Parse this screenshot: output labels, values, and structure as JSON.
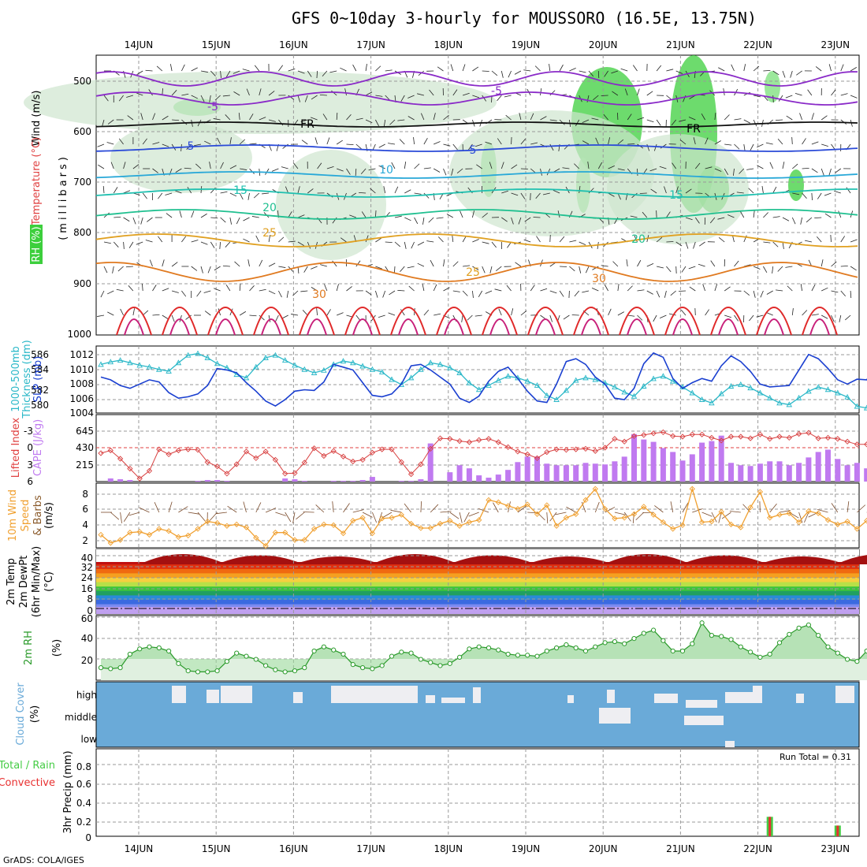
{
  "title": "GFS 0~10day 3-hourly for MOUSSORO (16.5E, 13.75N)",
  "footer": "GrADS: COLA/IGES",
  "days": [
    "14JUN",
    "15JUN",
    "16JUN",
    "17JUN",
    "18JUN",
    "19JUN",
    "20JUN",
    "21JUN",
    "22JUN",
    "23JUN"
  ],
  "colors": {
    "rh_fill": "#3ccf3c",
    "slp": "#1a3fd0",
    "thickness": "#2bb8c8",
    "cape": "#c07af0",
    "lifted": "#d84040",
    "wind10": "#f0a030",
    "rh2m": "#2a9a2a",
    "cloud": "#6aaad8",
    "precip_total": "#44cc44",
    "precip_conv": "#e83030"
  },
  "panels": {
    "upper": {
      "ylabel_wind": "Wind (m/s)",
      "ylabel_temp": "Temperature (°C)",
      "ylabel_rh": "RH (%)",
      "ylabel_mb": "(millibars)",
      "levels": [
        "500",
        "600",
        "700",
        "800",
        "900",
        "1000"
      ],
      "contour_labels": [
        "-5",
        "-5",
        "FR",
        "FR",
        "5",
        "5",
        "10",
        "15",
        "15",
        "20",
        "20",
        "25",
        "25",
        "30",
        "30"
      ]
    },
    "thick_slp": {
      "ylabel_a": "1000-500mb",
      "ylabel_b": "Thickness (dm)",
      "ylabel_c": "SLP (mb)",
      "left_ticks": [
        "586",
        "584",
        "582",
        "580"
      ],
      "right_ticks": [
        "1012",
        "1010",
        "1008",
        "1006",
        "1004"
      ]
    },
    "cape_li": {
      "ylabel_a": "Lifted Index",
      "ylabel_b": "CAPE (J/kg)",
      "left_ticks": [
        "-3",
        "0",
        "3",
        "6"
      ],
      "right_ticks": [
        "645",
        "430",
        "215"
      ]
    },
    "wind10": {
      "ylabel_a": "10m Wind",
      "ylabel_b": "Speed",
      "ylabel_c": "& Barbs",
      "ylabel_d": "(m/s)",
      "ticks": [
        "8",
        "6",
        "4",
        "2"
      ]
    },
    "temp2m": {
      "ylabel_a": "2m Temp",
      "ylabel_b": "2m DewPt",
      "ylabel_c": "(6hr Min/Max)",
      "ylabel_d": "(°C)",
      "ticks": [
        "40",
        "32",
        "24",
        "16",
        "8",
        "0"
      ]
    },
    "rh2m": {
      "ylabel_a": "2m RH",
      "ylabel_b": "(%)",
      "ticks": [
        "60",
        "40",
        "20"
      ]
    },
    "cloud": {
      "ylabel_a": "Cloud Cover",
      "ylabel_b": "(%)",
      "levels": [
        "high",
        "middle",
        "low"
      ]
    },
    "precip": {
      "ylabel_a": "Total / Rain",
      "ylabel_b": "Convective",
      "ylabel_c": "3hr Precip (mm)",
      "ticks": [
        "0.8",
        "0.6",
        "0.4",
        "0.2",
        "0"
      ],
      "run_total": "Run Total = 0.31"
    }
  },
  "chart_data": [
    {
      "type": "line",
      "name": "1000-500mb Thickness (dm)",
      "x_start": "13JUN 18Z",
      "x_step_hours": 3,
      "values": [
        584.8,
        585.1,
        585.3,
        585.0,
        584.7,
        584.5,
        584.2,
        584.0,
        585.0,
        585.9,
        586.1,
        585.6,
        584.9,
        584.4,
        583.6,
        583.2,
        584.5,
        585.6,
        585.9,
        585.3,
        584.7,
        584.2,
        583.8,
        584.1,
        584.8,
        585.2,
        585.0,
        584.6,
        584.2,
        583.9,
        583.0,
        582.4,
        583.2,
        584.2,
        585.0,
        584.8,
        584.4,
        583.8,
        582.6,
        581.8,
        582.3,
        582.9,
        583.4,
        583.2,
        582.8,
        582.3,
        581.1,
        580.6,
        581.7,
        582.9,
        583.2,
        583.0,
        582.6,
        582.1,
        581.5,
        581.0,
        582.2,
        583.1,
        583.4,
        582.8,
        582.1,
        581.4,
        580.6,
        580.2,
        581.3,
        582.2,
        582.4,
        582.0,
        581.4,
        580.8,
        580.2,
        580.0,
        580.8,
        581.6,
        582.1,
        581.8,
        581.4,
        580.9,
        579.8,
        579.6,
        580.6
      ]
    },
    {
      "type": "line",
      "name": "SLP (mb)",
      "values": [
        1008.6,
        1008.2,
        1007.4,
        1007.0,
        1007.6,
        1008.2,
        1007.9,
        1006.4,
        1005.6,
        1005.8,
        1006.2,
        1007.4,
        1009.8,
        1009.6,
        1009.2,
        1007.8,
        1006.6,
        1005.2,
        1004.5,
        1005.4,
        1006.6,
        1006.8,
        1006.7,
        1007.9,
        1010.4,
        1010.0,
        1009.6,
        1007.8,
        1006.0,
        1005.8,
        1006.2,
        1007.6,
        1010.2,
        1010.4,
        1009.6,
        1008.6,
        1007.6,
        1005.6,
        1005.0,
        1005.9,
        1008.0,
        1009.4,
        1010.0,
        1008.4,
        1006.6,
        1005.2,
        1005.0,
        1007.6,
        1010.8,
        1011.2,
        1010.4,
        1008.6,
        1007.6,
        1005.6,
        1005.4,
        1007.0,
        1010.5,
        1012.0,
        1011.4,
        1008.4,
        1007.0,
        1007.8,
        1008.4,
        1008.0,
        1010.2,
        1011.6,
        1010.8,
        1009.4,
        1007.6,
        1007.2,
        1007.3,
        1007.4,
        1009.6,
        1011.8,
        1011.2,
        1009.8,
        1008.2,
        1007.6,
        1008.3,
        1008.2,
        1010.4
      ]
    },
    {
      "type": "bar",
      "name": "CAPE (J/kg)",
      "values": [
        0,
        40,
        30,
        20,
        0,
        0,
        0,
        0,
        0,
        0,
        10,
        20,
        20,
        10,
        0,
        0,
        0,
        0,
        0,
        40,
        30,
        10,
        0,
        0,
        10,
        10,
        10,
        20,
        60,
        0,
        0,
        10,
        10,
        30,
        490,
        0,
        120,
        210,
        170,
        80,
        50,
        90,
        150,
        250,
        320,
        320,
        230,
        210,
        210,
        210,
        240,
        230,
        220,
        260,
        320,
        610,
        540,
        510,
        430,
        380,
        270,
        350,
        500,
        520,
        590,
        240,
        210,
        200,
        230,
        260,
        260,
        210,
        240,
        310,
        380,
        410,
        290,
        210,
        240,
        170,
        160
      ]
    },
    {
      "type": "line",
      "name": "Lifted Index",
      "values": [
        1.0,
        0.5,
        2.0,
        3.8,
        5.6,
        4.2,
        0.3,
        1.2,
        0.5,
        0.3,
        0.4,
        2.6,
        3.4,
        4.7,
        3.0,
        0.7,
        1.9,
        0.7,
        2.2,
        4.7,
        4.6,
        2.7,
        0.1,
        1.5,
        0.6,
        1.6,
        2.5,
        2.2,
        0.9,
        0.3,
        0.3,
        2.6,
        4.8,
        3.0,
        0.2,
        -1.7,
        -1.6,
        -1.2,
        -1.0,
        -1.4,
        -1.6,
        -1.0,
        -0.1,
        0.7,
        1.2,
        1.9,
        0.8,
        0.3,
        0.4,
        0.3,
        0.2,
        0.6,
        0.0,
        -1.6,
        -1.1,
        -2.1,
        -2.3,
        -2.6,
        -2.8,
        -2.1,
        -2.0,
        -2.4,
        -2.4,
        -1.8,
        -1.3,
        -2.0,
        -2.0,
        -1.7,
        -2.4,
        -1.6,
        -2.0,
        -1.8,
        -2.5,
        -2.7,
        -1.7,
        -1.8,
        -1.6,
        -1.1,
        -0.6,
        -0.6,
        -0.2
      ]
    },
    {
      "type": "line",
      "name": "10m Wind Speed (m/s)",
      "values": [
        2.8,
        1.7,
        2.1,
        3.1,
        3.2,
        2.8,
        3.6,
        3.3,
        2.5,
        2.7,
        3.6,
        4.6,
        4.4,
        4.0,
        4.2,
        3.8,
        2.4,
        1.3,
        3.1,
        3.1,
        2.1,
        2.1,
        3.6,
        4.2,
        4.1,
        3.0,
        4.7,
        5.1,
        3.0,
        5.0,
        5.1,
        5.5,
        4.3,
        3.7,
        3.7,
        4.3,
        4.7,
        4.0,
        4.5,
        4.8,
        7.5,
        7.2,
        6.7,
        6.3,
        6.9,
        5.6,
        6.8,
        4.0,
        5.1,
        5.6,
        7.5,
        9.0,
        6.3,
        5.0,
        5.1,
        5.6,
        6.6,
        5.5,
        4.5,
        3.6,
        4.1,
        9.0,
        4.5,
        4.6,
        5.9,
        4.2,
        3.8,
        6.5,
        8.6,
        5.1,
        5.5,
        5.7,
        4.5,
        6.0,
        5.7,
        4.8,
        4.2,
        4.6,
        3.6,
        4.7,
        5.0
      ]
    },
    {
      "type": "line",
      "name": "2m RH (%)",
      "values": [
        12,
        11,
        12,
        25,
        30,
        32,
        31,
        28,
        16,
        9,
        8,
        8,
        9,
        18,
        26,
        23,
        20,
        14,
        10,
        8,
        9,
        12,
        28,
        32,
        29,
        25,
        15,
        12,
        11,
        14,
        23,
        27,
        26,
        20,
        17,
        14,
        16,
        22,
        30,
        32,
        31,
        29,
        25,
        24,
        24,
        23,
        28,
        31,
        34,
        31,
        28,
        32,
        36,
        37,
        35,
        40,
        45,
        48,
        38,
        28,
        28,
        35,
        55,
        43,
        42,
        39,
        32,
        27,
        22,
        25,
        36,
        44,
        50,
        53,
        43,
        32,
        26,
        20,
        18,
        28,
        34
      ]
    },
    {
      "type": "bar",
      "name": "3hr Precip (mm)",
      "values": [
        0,
        0,
        0,
        0,
        0,
        0,
        0,
        0,
        0,
        0,
        0,
        0,
        0,
        0,
        0,
        0,
        0,
        0,
        0,
        0,
        0,
        0,
        0,
        0,
        0,
        0,
        0,
        0,
        0,
        0,
        0,
        0,
        0,
        0,
        0,
        0,
        0,
        0,
        0,
        0,
        0,
        0,
        0,
        0,
        0,
        0,
        0,
        0,
        0,
        0,
        0,
        0,
        0,
        0,
        0,
        0,
        0,
        0,
        0,
        0,
        0,
        0,
        0,
        0,
        0,
        0,
        0,
        0,
        0,
        0.2,
        0,
        0,
        0,
        0,
        0,
        0,
        0.11,
        0,
        0,
        0,
        0
      ]
    }
  ]
}
